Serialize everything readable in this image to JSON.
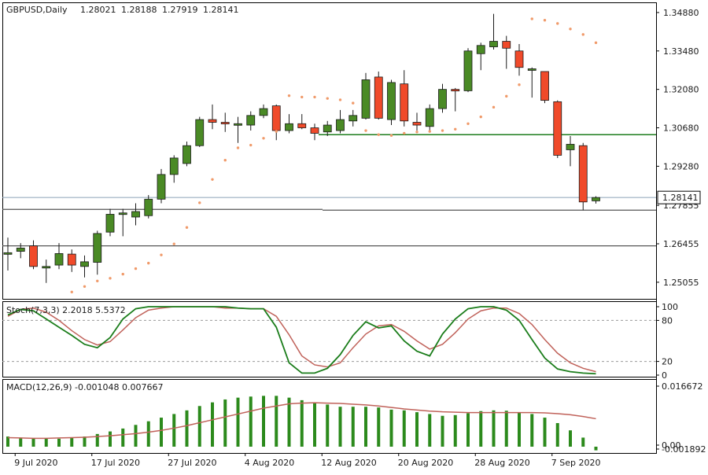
{
  "chart_data": [
    {
      "type": "candlestick",
      "title": "GBPUSD,Daily",
      "ohlc_values": [
        "1.28021",
        "1.28188",
        "1.27919",
        "1.28141"
      ],
      "current_price": 1.28141,
      "current_price_label": "1.28141",
      "ylim": [
        1.2445,
        1.3525
      ],
      "y_ticks": [
        1.3488,
        1.3348,
        1.3208,
        1.3068,
        1.2928,
        1.27855,
        1.26455,
        1.25055
      ],
      "y_tick_labels": [
        "1.34880",
        "1.33480",
        "1.32080",
        "1.30680",
        "1.29280",
        "1.27855",
        "1.26455",
        "1.25055"
      ],
      "x_labels": [
        "9 Jul 2020",
        "17 Jul 2020",
        "27 Jul 2020",
        "4 Aug 2020",
        "12 Aug 2020",
        "20 Aug 2020",
        "28 Aug 2020",
        "7 Sep 2020"
      ],
      "x_label_index": [
        1,
        7,
        13,
        19,
        25,
        31,
        37,
        43
      ],
      "candles": [
        {
          "o": 1.2613,
          "h": 1.2668,
          "l": 1.2548,
          "c": 1.2613
        },
        {
          "o": 1.2618,
          "h": 1.2648,
          "l": 1.2593,
          "c": 1.263
        },
        {
          "o": 1.2638,
          "h": 1.2658,
          "l": 1.2553,
          "c": 1.2563
        },
        {
          "o": 1.2563,
          "h": 1.2588,
          "l": 1.2503,
          "c": 1.2563
        },
        {
          "o": 1.2568,
          "h": 1.2648,
          "l": 1.2553,
          "c": 1.261
        },
        {
          "o": 1.2608,
          "h": 1.2625,
          "l": 1.2543,
          "c": 1.2568
        },
        {
          "o": 1.2563,
          "h": 1.2603,
          "l": 1.2523,
          "c": 1.258
        },
        {
          "o": 1.2578,
          "h": 1.2693,
          "l": 1.2533,
          "c": 1.2683
        },
        {
          "o": 1.2688,
          "h": 1.2773,
          "l": 1.2673,
          "c": 1.2753
        },
        {
          "o": 1.2753,
          "h": 1.2773,
          "l": 1.2673,
          "c": 1.2758
        },
        {
          "o": 1.2743,
          "h": 1.2793,
          "l": 1.2713,
          "c": 1.2763
        },
        {
          "o": 1.2748,
          "h": 1.2823,
          "l": 1.2738,
          "c": 1.2808
        },
        {
          "o": 1.2808,
          "h": 1.2918,
          "l": 1.2793,
          "c": 1.2898
        },
        {
          "o": 1.2898,
          "h": 1.2968,
          "l": 1.2868,
          "c": 1.2958
        },
        {
          "o": 1.2938,
          "h": 1.3018,
          "l": 1.2928,
          "c": 1.3003
        },
        {
          "o": 1.3003,
          "h": 1.3108,
          "l": 1.2998,
          "c": 1.3098
        },
        {
          "o": 1.3098,
          "h": 1.3153,
          "l": 1.3063,
          "c": 1.3088
        },
        {
          "o": 1.3088,
          "h": 1.3123,
          "l": 1.3053,
          "c": 1.3083
        },
        {
          "o": 1.3083,
          "h": 1.3108,
          "l": 1.3013,
          "c": 1.3083
        },
        {
          "o": 1.3078,
          "h": 1.3128,
          "l": 1.3058,
          "c": 1.3113
        },
        {
          "o": 1.3113,
          "h": 1.3153,
          "l": 1.3103,
          "c": 1.3138
        },
        {
          "o": 1.3148,
          "h": 1.3153,
          "l": 1.3023,
          "c": 1.3058
        },
        {
          "o": 1.3058,
          "h": 1.3118,
          "l": 1.3048,
          "c": 1.3083
        },
        {
          "o": 1.3083,
          "h": 1.3118,
          "l": 1.3063,
          "c": 1.3068
        },
        {
          "o": 1.3068,
          "h": 1.3083,
          "l": 1.3023,
          "c": 1.3048
        },
        {
          "o": 1.3053,
          "h": 1.3093,
          "l": 1.3038,
          "c": 1.3078
        },
        {
          "o": 1.3058,
          "h": 1.3133,
          "l": 1.3048,
          "c": 1.3098
        },
        {
          "o": 1.3093,
          "h": 1.3133,
          "l": 1.3073,
          "c": 1.3113
        },
        {
          "o": 1.3103,
          "h": 1.3268,
          "l": 1.3098,
          "c": 1.3243
        },
        {
          "o": 1.3253,
          "h": 1.3273,
          "l": 1.3098,
          "c": 1.3103
        },
        {
          "o": 1.3098,
          "h": 1.3243,
          "l": 1.3078,
          "c": 1.3233
        },
        {
          "o": 1.3228,
          "h": 1.3278,
          "l": 1.3073,
          "c": 1.3093
        },
        {
          "o": 1.3088,
          "h": 1.3123,
          "l": 1.3058,
          "c": 1.3078
        },
        {
          "o": 1.3073,
          "h": 1.3153,
          "l": 1.3058,
          "c": 1.3138
        },
        {
          "o": 1.3138,
          "h": 1.3228,
          "l": 1.3123,
          "c": 1.3208
        },
        {
          "o": 1.3208,
          "h": 1.3213,
          "l": 1.3128,
          "c": 1.3203
        },
        {
          "o": 1.3203,
          "h": 1.3358,
          "l": 1.3198,
          "c": 1.3348
        },
        {
          "o": 1.3338,
          "h": 1.3378,
          "l": 1.3278,
          "c": 1.3368
        },
        {
          "o": 1.3363,
          "h": 1.3483,
          "l": 1.3353,
          "c": 1.3383
        },
        {
          "o": 1.3383,
          "h": 1.3403,
          "l": 1.3283,
          "c": 1.3358
        },
        {
          "o": 1.3348,
          "h": 1.3373,
          "l": 1.3258,
          "c": 1.3288
        },
        {
          "o": 1.3283,
          "h": 1.3288,
          "l": 1.3178,
          "c": 1.3283
        },
        {
          "o": 1.3273,
          "h": 1.3273,
          "l": 1.3158,
          "c": 1.3168
        },
        {
          "o": 1.3163,
          "h": 1.3168,
          "l": 1.2958,
          "c": 1.2968
        },
        {
          "o": 1.2988,
          "h": 1.3038,
          "l": 1.2928,
          "c": 1.3008
        },
        {
          "o": 1.3003,
          "h": 1.3013,
          "l": 1.2768,
          "c": 1.2798
        },
        {
          "o": 1.2802,
          "h": 1.2819,
          "l": 1.2792,
          "c": 1.2814
        }
      ],
      "psar": [
        null,
        null,
        null,
        null,
        null,
        1.247,
        1.249,
        1.251,
        1.252,
        1.2535,
        1.2555,
        1.2575,
        1.2605,
        1.2645,
        1.2705,
        1.2795,
        1.288,
        1.295,
        1.2995,
        1.3005,
        1.303,
        1.3055,
        1.3185,
        1.318,
        1.318,
        1.3175,
        1.317,
        1.3158,
        1.3058,
        1.3043,
        1.304,
        1.3048,
        1.3053,
        1.3055,
        1.3058,
        1.3063,
        1.3083,
        1.3108,
        1.3143,
        1.3183,
        1.3225,
        1.3465,
        1.346,
        1.3448,
        1.3428,
        1.3408,
        1.3378
      ],
      "horizontal_levels": [
        1.3043,
        1.2768,
        1.2638
      ],
      "stochastic": {
        "label": "Stoch(7,3,3) 2.2018 5.5372",
        "levels": [
          80,
          20
        ],
        "y_tick_labels": [
          "100",
          "80",
          "20",
          "0"
        ],
        "main": [
          88,
          96,
          94,
          82,
          70,
          58,
          45,
          40,
          55,
          82,
          97,
          100,
          100,
          100,
          100,
          100,
          100,
          100,
          98,
          97,
          97,
          70,
          18,
          3,
          3,
          10,
          30,
          58,
          78,
          69,
          72,
          50,
          35,
          28,
          60,
          82,
          97,
          100,
          100,
          95,
          80,
          52,
          25,
          9,
          5,
          3,
          2
        ],
        "signal": [
          86,
          96,
          98,
          92,
          80,
          65,
          52,
          44,
          49,
          66,
          84,
          95,
          98,
          100,
          100,
          100,
          100,
          98,
          98,
          97,
          97,
          86,
          59,
          28,
          15,
          12,
          18,
          40,
          60,
          72,
          74,
          64,
          50,
          38,
          45,
          62,
          82,
          94,
          98,
          98,
          90,
          74,
          52,
          32,
          18,
          10,
          5
        ]
      },
      "macd": {
        "label": "MACD(12,26,9) -0.001048 0.007667",
        "y_tick_labels": [
          "0.016672",
          "0.00",
          "-0.001892"
        ],
        "histogram": [
          0.0028,
          0.0025,
          0.0022,
          0.0022,
          0.0022,
          0.0025,
          0.0028,
          0.0035,
          0.0042,
          0.005,
          0.006,
          0.007,
          0.008,
          0.009,
          0.01,
          0.0112,
          0.0122,
          0.013,
          0.0135,
          0.0138,
          0.014,
          0.014,
          0.0135,
          0.0128,
          0.0122,
          0.0116,
          0.011,
          0.011,
          0.011,
          0.0108,
          0.0102,
          0.01,
          0.0095,
          0.009,
          0.0085,
          0.0087,
          0.0092,
          0.0098,
          0.01,
          0.0099,
          0.0095,
          0.009,
          0.008,
          0.0065,
          0.0045,
          0.0025,
          -0.001
        ],
        "signal": [
          0.0025,
          0.0024,
          0.0023,
          0.0023,
          0.0024,
          0.0025,
          0.0026,
          0.0028,
          0.003,
          0.0033,
          0.0036,
          0.004,
          0.0045,
          0.0051,
          0.0058,
          0.0066,
          0.0074,
          0.0082,
          0.009,
          0.0098,
          0.0106,
          0.0112,
          0.0118,
          0.012,
          0.0121,
          0.012,
          0.0119,
          0.0117,
          0.0115,
          0.0112,
          0.0108,
          0.0104,
          0.0101,
          0.0098,
          0.0096,
          0.0095,
          0.0094,
          0.0094,
          0.0094,
          0.0094,
          0.0094,
          0.0094,
          0.0093,
          0.0091,
          0.0088,
          0.0083,
          0.0077
        ]
      }
    }
  ]
}
